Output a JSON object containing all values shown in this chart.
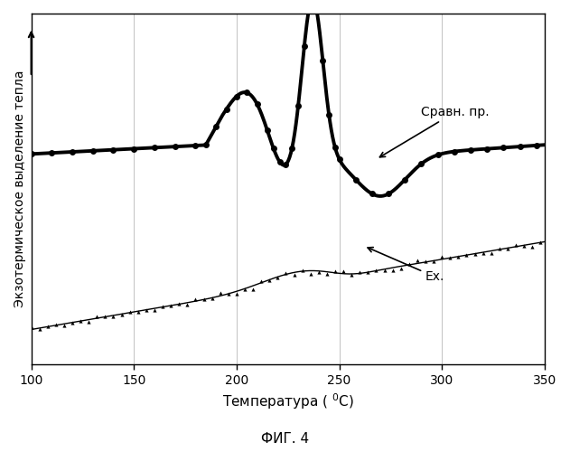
{
  "title": "ФИГ. 4",
  "xlabel": "Температура ( $^0$C)",
  "ylabel": "Экзотермическое выделение тепла",
  "xlim": [
    100,
    350
  ],
  "ylim": [
    0,
    10
  ],
  "xticks": [
    100,
    150,
    200,
    250,
    300,
    350
  ],
  "label_sravnenie": "Сравн. пр.",
  "label_ex": "Ex.",
  "background_color": "#ffffff",
  "line_color": "#000000",
  "grid_color": "#999999"
}
